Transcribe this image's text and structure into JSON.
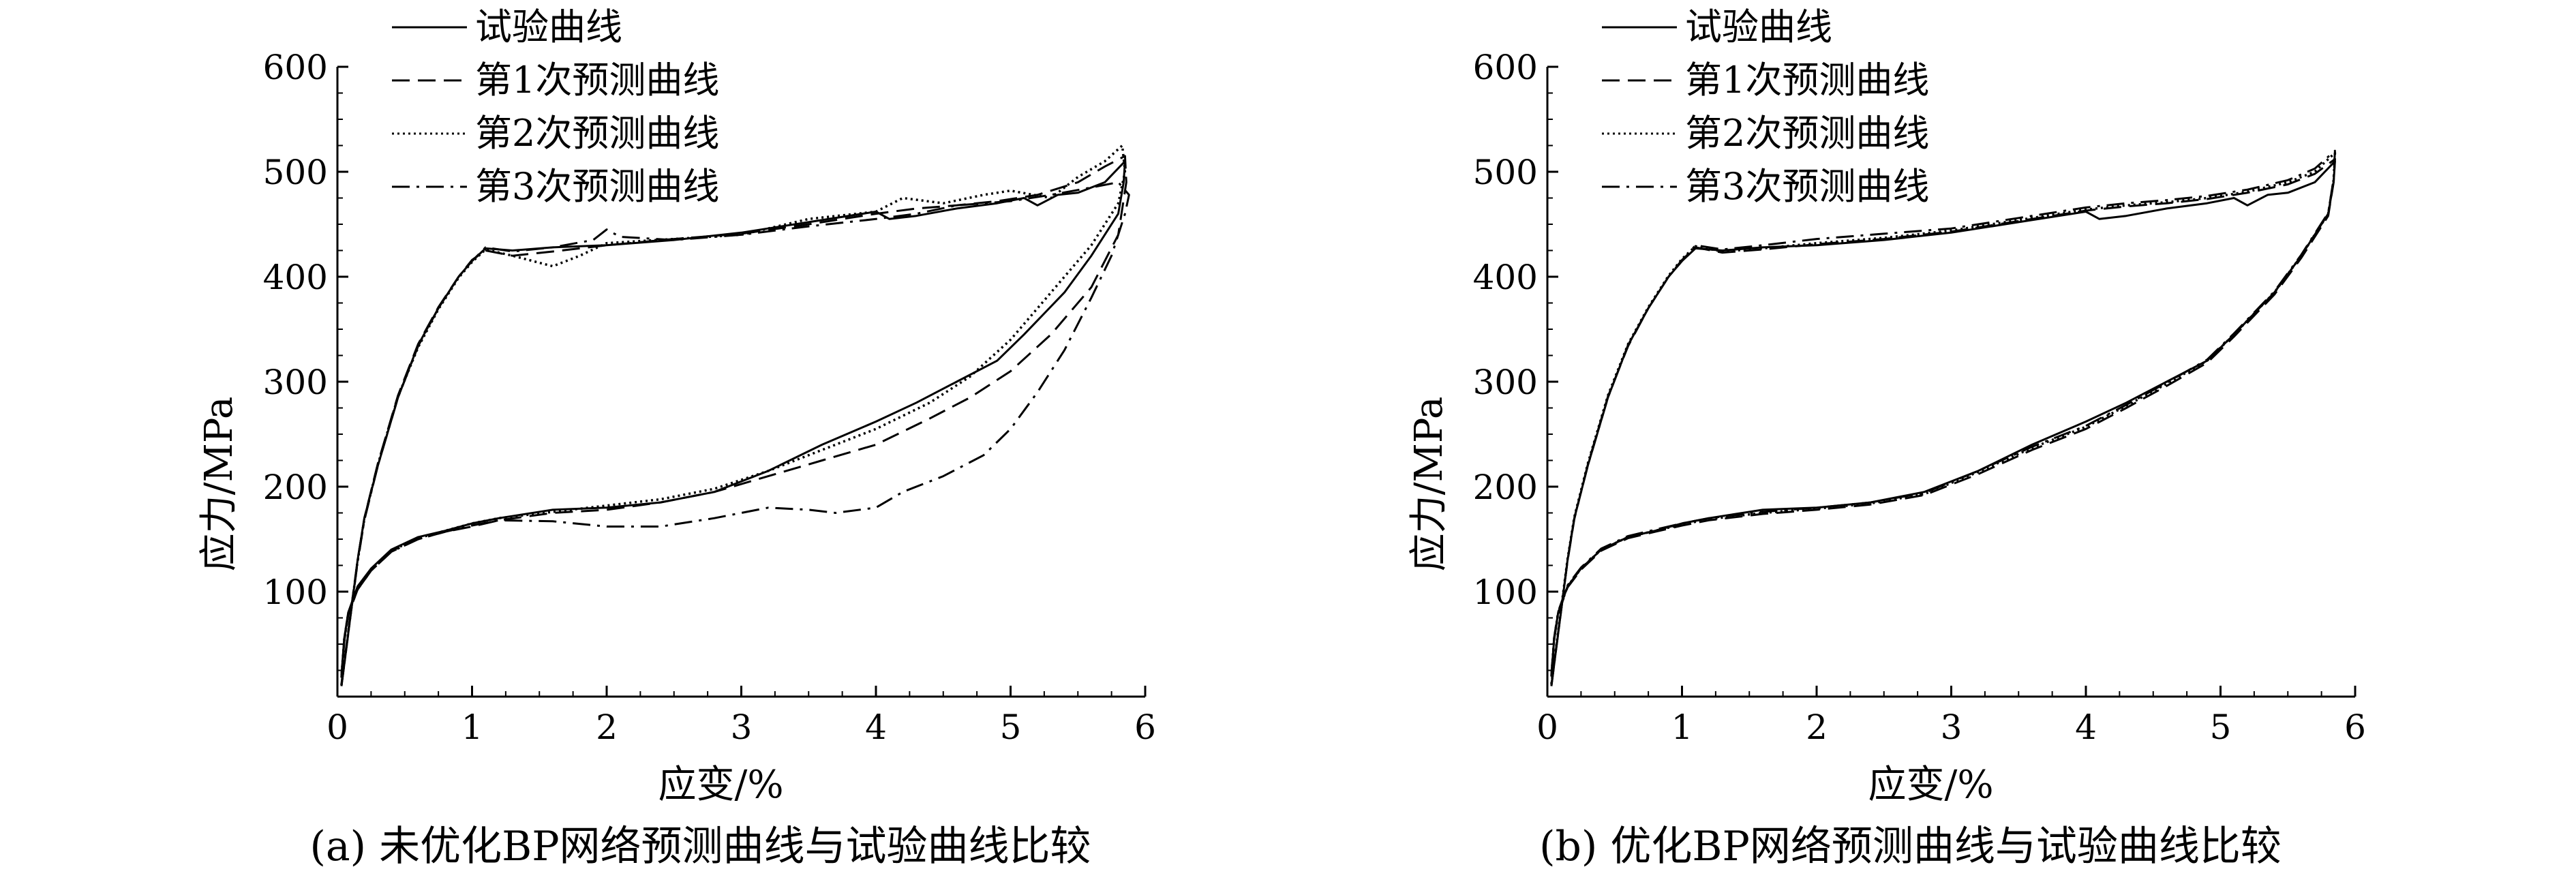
{
  "chart_data": [
    {
      "type": "line",
      "title": "",
      "caption": "(a) 未优化BP网络预测曲线与试验曲线比较",
      "xlabel": "应变/%",
      "ylabel": "应力/MPa",
      "xlim": [
        0,
        6
      ],
      "ylim": [
        0,
        600
      ],
      "xticks": [
        "0",
        "1",
        "2",
        "3",
        "4",
        "5",
        "6"
      ],
      "yticks": [
        "100",
        "200",
        "300",
        "400",
        "500",
        "600"
      ],
      "grid": false,
      "legend_position": "top-left",
      "series": [
        {
          "name": "试验曲线",
          "line_style": "solid",
          "x": [
            0.03,
            0.06,
            0.1,
            0.15,
            0.2,
            0.3,
            0.45,
            0.6,
            0.75,
            0.9,
            1.0,
            1.1,
            1.3,
            1.6,
            2.0,
            2.5,
            3.0,
            3.5,
            4.0,
            4.1,
            4.3,
            4.6,
            4.9,
            5.1,
            5.2,
            5.35,
            5.5,
            5.7,
            5.85,
            5.84,
            5.8,
            5.6,
            5.4,
            5.1,
            4.9,
            4.6,
            4.3,
            4.0,
            3.6,
            3.2,
            2.8,
            2.4,
            2.0,
            1.6,
            1.2,
            1.0,
            0.8,
            0.6,
            0.4,
            0.25,
            0.15,
            0.08,
            0.05,
            0.03
          ],
          "y": [
            10,
            40,
            80,
            130,
            170,
            220,
            285,
            335,
            370,
            400,
            415,
            427,
            425,
            428,
            430,
            435,
            442,
            452,
            462,
            455,
            458,
            465,
            470,
            475,
            468,
            478,
            480,
            490,
            510,
            490,
            460,
            420,
            385,
            345,
            320,
            300,
            280,
            262,
            240,
            215,
            195,
            185,
            180,
            178,
            170,
            165,
            158,
            152,
            140,
            122,
            105,
            80,
            55,
            20
          ]
        },
        {
          "name": "第1次预测曲线",
          "line_style": "dashed",
          "x": [
            0.03,
            0.06,
            0.1,
            0.15,
            0.2,
            0.3,
            0.45,
            0.6,
            0.75,
            0.9,
            1.0,
            1.1,
            1.3,
            1.6,
            2.0,
            2.5,
            3.0,
            3.5,
            4.0,
            4.3,
            4.6,
            4.9,
            5.2,
            5.5,
            5.7,
            5.85,
            5.86,
            5.8,
            5.6,
            5.3,
            5.0,
            4.7,
            4.4,
            4.0,
            3.6,
            3.2,
            2.8,
            2.4,
            2.0,
            1.6,
            1.2,
            1.0,
            0.8,
            0.6,
            0.4,
            0.25,
            0.15,
            0.08,
            0.05,
            0.03
          ],
          "y": [
            12,
            42,
            82,
            130,
            170,
            222,
            287,
            336,
            371,
            400,
            416,
            425,
            420,
            424,
            430,
            436,
            441,
            450,
            460,
            465,
            468,
            472,
            478,
            490,
            505,
            515,
            490,
            440,
            390,
            345,
            310,
            285,
            265,
            240,
            225,
            210,
            195,
            185,
            178,
            175,
            168,
            162,
            157,
            150,
            138,
            120,
            102,
            78,
            52,
            18
          ]
        },
        {
          "name": "第2次预测曲线",
          "line_style": "dotted",
          "x": [
            0.03,
            0.06,
            0.1,
            0.15,
            0.2,
            0.3,
            0.45,
            0.6,
            0.75,
            0.9,
            1.0,
            1.1,
            1.3,
            1.6,
            1.8,
            2.0,
            2.5,
            3.0,
            3.5,
            4.0,
            4.2,
            4.5,
            4.8,
            5.0,
            5.3,
            5.5,
            5.7,
            5.83,
            5.85,
            5.8,
            5.6,
            5.3,
            5.0,
            4.7,
            4.4,
            4.0,
            3.6,
            3.2,
            2.8,
            2.4,
            2.0,
            1.6,
            1.2,
            1.0,
            0.8,
            0.6,
            0.4,
            0.25,
            0.15,
            0.08,
            0.05,
            0.03
          ],
          "y": [
            11,
            41,
            81,
            129,
            169,
            221,
            286,
            333,
            369,
            399,
            414,
            426,
            420,
            410,
            420,
            432,
            436,
            440,
            455,
            462,
            475,
            470,
            478,
            482,
            475,
            495,
            510,
            525,
            500,
            470,
            430,
            385,
            340,
            305,
            280,
            255,
            235,
            215,
            198,
            188,
            182,
            176,
            170,
            165,
            158,
            151,
            139,
            121,
            104,
            79,
            54,
            19
          ]
        },
        {
          "name": "第3次预测曲线",
          "line_style": "dashdot",
          "x": [
            0.03,
            0.06,
            0.1,
            0.15,
            0.2,
            0.3,
            0.45,
            0.6,
            0.75,
            0.9,
            1.0,
            1.1,
            1.3,
            1.6,
            1.9,
            2.0,
            2.1,
            2.5,
            3.0,
            3.5,
            4.0,
            4.3,
            4.6,
            5.0,
            5.3,
            5.6,
            5.8,
            5.88,
            5.85,
            5.75,
            5.6,
            5.4,
            5.2,
            5.0,
            4.8,
            4.5,
            4.2,
            4.0,
            3.7,
            3.5,
            3.2,
            2.8,
            2.4,
            2.0,
            1.6,
            1.2,
            1.0,
            0.8,
            0.6,
            0.4,
            0.25,
            0.15,
            0.08,
            0.05,
            0.03
          ],
          "y": [
            10,
            40,
            80,
            128,
            168,
            220,
            285,
            334,
            370,
            400,
            415,
            428,
            424,
            428,
            435,
            445,
            438,
            435,
            440,
            448,
            455,
            460,
            468,
            472,
            478,
            485,
            490,
            478,
            460,
            420,
            380,
            330,
            290,
            255,
            230,
            210,
            195,
            180,
            175,
            178,
            180,
            170,
            162,
            162,
            167,
            168,
            163,
            157,
            150,
            138,
            120,
            102,
            78,
            52,
            18
          ]
        }
      ]
    },
    {
      "type": "line",
      "title": "",
      "caption": "(b) 优化BP网络预测曲线与试验曲线比较",
      "xlabel": "应变/%",
      "ylabel": "应力/MPa",
      "xlim": [
        0,
        6
      ],
      "ylim": [
        0,
        600
      ],
      "xticks": [
        "0",
        "1",
        "2",
        "3",
        "4",
        "5",
        "6"
      ],
      "yticks": [
        "100",
        "200",
        "300",
        "400",
        "500",
        "600"
      ],
      "grid": false,
      "legend_position": "top-left",
      "series": [
        {
          "name": "试验曲线",
          "line_style": "solid",
          "x": [
            0.03,
            0.06,
            0.1,
            0.15,
            0.2,
            0.3,
            0.45,
            0.6,
            0.75,
            0.9,
            1.0,
            1.1,
            1.3,
            1.6,
            2.0,
            2.5,
            3.0,
            3.5,
            4.0,
            4.1,
            4.3,
            4.6,
            4.9,
            5.1,
            5.2,
            5.35,
            5.5,
            5.7,
            5.85,
            5.84,
            5.8,
            5.6,
            5.4,
            5.1,
            4.9,
            4.6,
            4.3,
            4.0,
            3.6,
            3.2,
            2.8,
            2.4,
            2.0,
            1.6,
            1.2,
            1.0,
            0.8,
            0.6,
            0.4,
            0.25,
            0.15,
            0.08,
            0.05,
            0.03
          ],
          "y": [
            10,
            40,
            80,
            130,
            170,
            220,
            285,
            335,
            370,
            400,
            415,
            427,
            425,
            428,
            430,
            435,
            442,
            452,
            462,
            455,
            458,
            465,
            470,
            475,
            468,
            478,
            480,
            490,
            510,
            490,
            460,
            420,
            385,
            345,
            320,
            300,
            280,
            262,
            240,
            215,
            195,
            185,
            180,
            178,
            170,
            165,
            158,
            152,
            140,
            122,
            105,
            80,
            55,
            20
          ]
        },
        {
          "name": "第1次预测曲线",
          "line_style": "dashed",
          "x": [
            0.03,
            0.06,
            0.1,
            0.15,
            0.2,
            0.3,
            0.45,
            0.6,
            0.75,
            0.9,
            1.0,
            1.1,
            1.3,
            1.6,
            2.0,
            2.5,
            3.0,
            3.5,
            4.0,
            4.3,
            4.6,
            4.9,
            5.2,
            5.5,
            5.7,
            5.85,
            5.84,
            5.8,
            5.6,
            5.4,
            5.1,
            4.9,
            4.6,
            4.3,
            4.0,
            3.6,
            3.2,
            2.8,
            2.4,
            2.0,
            1.6,
            1.2,
            1.0,
            0.8,
            0.6,
            0.4,
            0.25,
            0.15,
            0.08,
            0.05,
            0.03
          ],
          "y": [
            11,
            41,
            81,
            129,
            169,
            221,
            286,
            334,
            370,
            400,
            416,
            428,
            423,
            426,
            431,
            436,
            443,
            453,
            463,
            467,
            470,
            474,
            480,
            488,
            498,
            512,
            490,
            458,
            418,
            383,
            343,
            318,
            296,
            275,
            255,
            235,
            212,
            192,
            183,
            178,
            174,
            168,
            163,
            157,
            151,
            139,
            121,
            104,
            79,
            54,
            19
          ]
        },
        {
          "name": "第2次预测曲线",
          "line_style": "dotted",
          "x": [
            0.03,
            0.06,
            0.1,
            0.15,
            0.2,
            0.3,
            0.45,
            0.6,
            0.75,
            0.9,
            1.0,
            1.1,
            1.3,
            1.6,
            2.0,
            2.5,
            3.0,
            3.5,
            4.0,
            4.3,
            4.6,
            4.9,
            5.2,
            5.5,
            5.7,
            5.85,
            5.84,
            5.8,
            5.6,
            5.4,
            5.1,
            4.9,
            4.6,
            4.3,
            4.0,
            3.6,
            3.2,
            2.8,
            2.4,
            2.0,
            1.6,
            1.2,
            1.0,
            0.8,
            0.6,
            0.4,
            0.25,
            0.15,
            0.08,
            0.05,
            0.03
          ],
          "y": [
            12,
            42,
            82,
            131,
            171,
            222,
            287,
            336,
            371,
            401,
            417,
            429,
            424,
            427,
            432,
            437,
            444,
            454,
            464,
            468,
            471,
            475,
            481,
            490,
            500,
            518,
            492,
            460,
            420,
            385,
            345,
            320,
            298,
            277,
            257,
            237,
            214,
            193,
            184,
            179,
            175,
            169,
            164,
            158,
            152,
            140,
            122,
            105,
            80,
            55,
            20
          ]
        },
        {
          "name": "第3次预测曲线",
          "line_style": "dashdot",
          "x": [
            0.03,
            0.06,
            0.1,
            0.15,
            0.2,
            0.3,
            0.45,
            0.6,
            0.75,
            0.9,
            1.0,
            1.1,
            1.3,
            1.6,
            2.0,
            2.5,
            3.0,
            3.5,
            4.0,
            4.3,
            4.6,
            4.9,
            5.2,
            5.5,
            5.7,
            5.85,
            5.84,
            5.8,
            5.6,
            5.4,
            5.1,
            4.9,
            4.6,
            4.3,
            4.0,
            3.6,
            3.2,
            2.8,
            2.4,
            2.0,
            1.6,
            1.2,
            1.0,
            0.8,
            0.6,
            0.4,
            0.25,
            0.15,
            0.08,
            0.05,
            0.03
          ],
          "y": [
            10,
            40,
            80,
            130,
            170,
            220,
            285,
            335,
            370,
            400,
            415,
            430,
            426,
            430,
            436,
            441,
            446,
            456,
            466,
            470,
            473,
            477,
            483,
            492,
            503,
            520,
            493,
            461,
            421,
            386,
            346,
            321,
            299,
            278,
            258,
            238,
            215,
            194,
            185,
            180,
            176,
            170,
            165,
            159,
            153,
            141,
            123,
            106,
            81,
            56,
            21
          ]
        }
      ]
    }
  ]
}
